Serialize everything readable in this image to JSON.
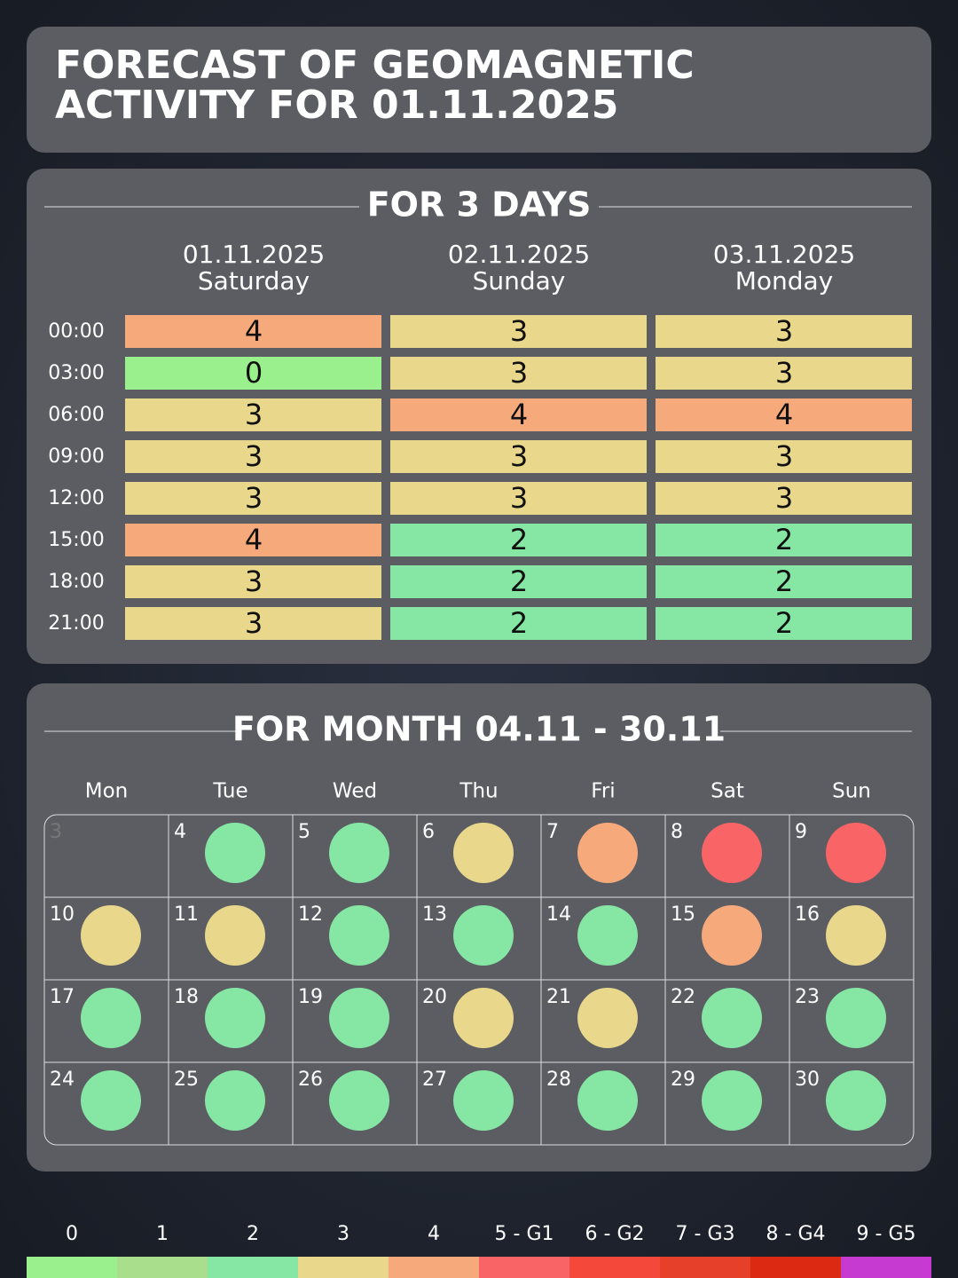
{
  "header": {
    "title_lines": [
      "FORECAST OF GEOMAGNETIC",
      "ACTIVITY FOR 01.11.2025"
    ]
  },
  "three_days": {
    "title": "FOR 3 DAYS",
    "columns": [
      {
        "date": "01.11.2025",
        "weekday": "Saturday"
      },
      {
        "date": "02.11.2025",
        "weekday": "Sunday"
      },
      {
        "date": "03.11.2025",
        "weekday": "Monday"
      }
    ],
    "rows": [
      {
        "time": "00:00",
        "values": [
          4,
          3,
          3
        ]
      },
      {
        "time": "03:00",
        "values": [
          0,
          3,
          3
        ]
      },
      {
        "time": "06:00",
        "values": [
          3,
          4,
          4
        ]
      },
      {
        "time": "09:00",
        "values": [
          3,
          3,
          3
        ]
      },
      {
        "time": "12:00",
        "values": [
          3,
          3,
          3
        ]
      },
      {
        "time": "15:00",
        "values": [
          4,
          2,
          2
        ]
      },
      {
        "time": "18:00",
        "values": [
          3,
          2,
          2
        ]
      },
      {
        "time": "21:00",
        "values": [
          3,
          2,
          2
        ]
      }
    ]
  },
  "month": {
    "title": "FOR MONTH 04.11 - 30.11",
    "weekdays": [
      "Mon",
      "Tue",
      "Wed",
      "Thu",
      "Fri",
      "Sat",
      "Sun"
    ],
    "days": [
      {
        "day": "3"
      },
      {
        "day": "4",
        "level": 2
      },
      {
        "day": "5",
        "level": 2
      },
      {
        "day": "6",
        "level": 3
      },
      {
        "day": "7",
        "level": 4
      },
      {
        "day": "8",
        "level": 5
      },
      {
        "day": "9",
        "level": 5
      },
      {
        "day": "10",
        "level": 3
      },
      {
        "day": "11",
        "level": 3
      },
      {
        "day": "12",
        "level": 2
      },
      {
        "day": "13",
        "level": 2
      },
      {
        "day": "14",
        "level": 2
      },
      {
        "day": "15",
        "level": 4
      },
      {
        "day": "16",
        "level": 3
      },
      {
        "day": "17",
        "level": 2
      },
      {
        "day": "18",
        "level": 2
      },
      {
        "day": "19",
        "level": 2
      },
      {
        "day": "20",
        "level": 3
      },
      {
        "day": "21",
        "level": 3
      },
      {
        "day": "22",
        "level": 2
      },
      {
        "day": "23",
        "level": 2
      },
      {
        "day": "24",
        "level": 2
      },
      {
        "day": "25",
        "level": 2
      },
      {
        "day": "26",
        "level": 2
      },
      {
        "day": "27",
        "level": 2
      },
      {
        "day": "28",
        "level": 2
      },
      {
        "day": "29",
        "level": 2
      },
      {
        "day": "30",
        "level": 2
      }
    ]
  },
  "scale": [
    {
      "label": "0",
      "color": "#9af08c"
    },
    {
      "label": "1",
      "color": "#a9de8c"
    },
    {
      "label": "2",
      "color": "#86e6a4"
    },
    {
      "label": "3",
      "color": "#e9d88b"
    },
    {
      "label": "4",
      "color": "#f6a97a"
    },
    {
      "label": "5 - G1",
      "color": "#f96466"
    },
    {
      "label": "6 - G2",
      "color": "#f4483a"
    },
    {
      "label": "7 - G3",
      "color": "#e6402a"
    },
    {
      "label": "8 - G4",
      "color": "#dc2a12"
    },
    {
      "label": "9 - G5",
      "color": "#c63ad2"
    }
  ]
}
